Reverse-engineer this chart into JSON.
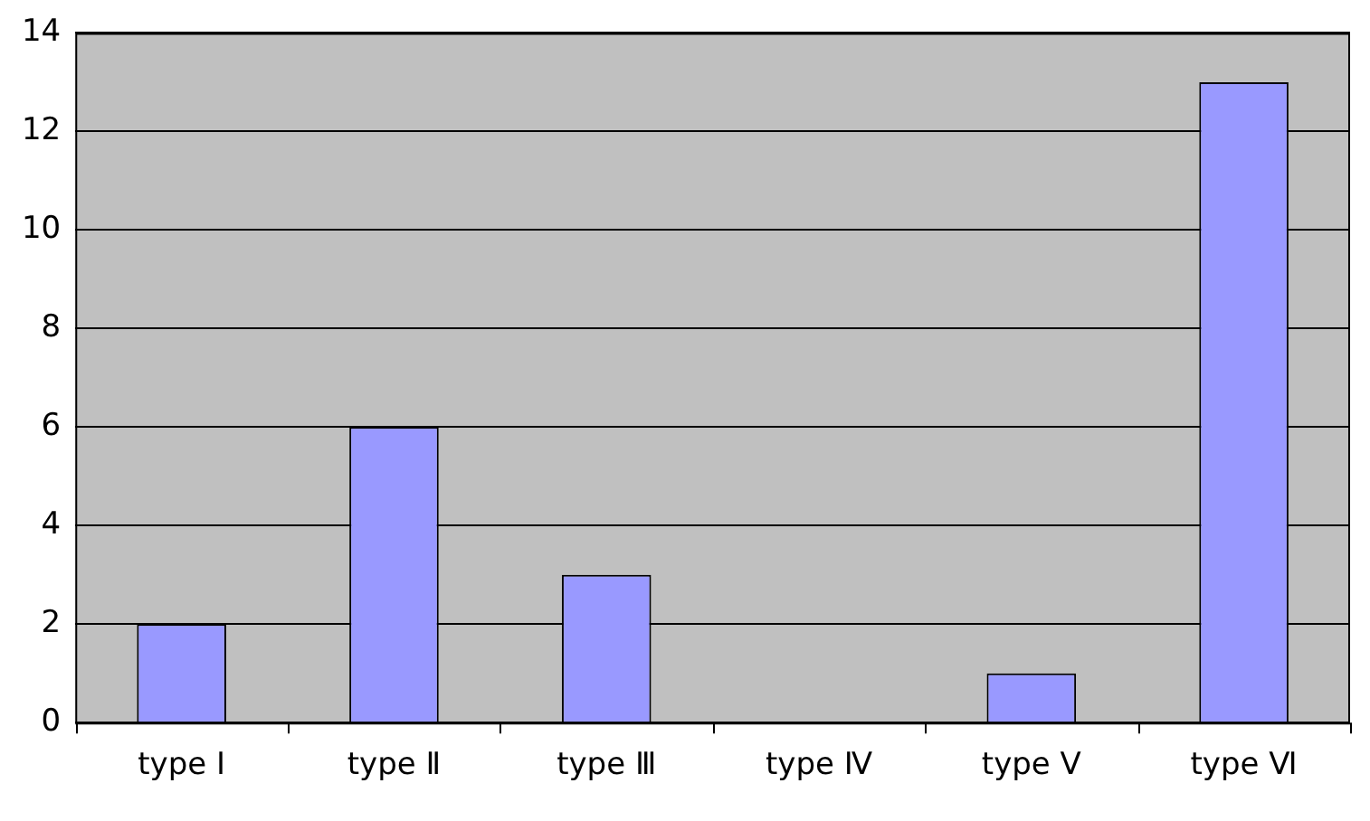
{
  "chart_data": {
    "type": "bar",
    "categories": [
      "type Ⅰ",
      "type Ⅱ",
      "type Ⅲ",
      "type Ⅳ",
      "type Ⅴ",
      "type Ⅵ"
    ],
    "values": [
      2,
      6,
      3,
      0,
      1,
      13
    ],
    "color": "#9999ff",
    "ylim": [
      0,
      14
    ],
    "yticks": [
      0,
      2,
      4,
      6,
      8,
      10,
      12,
      14
    ],
    "grid": "y",
    "legend": false
  }
}
